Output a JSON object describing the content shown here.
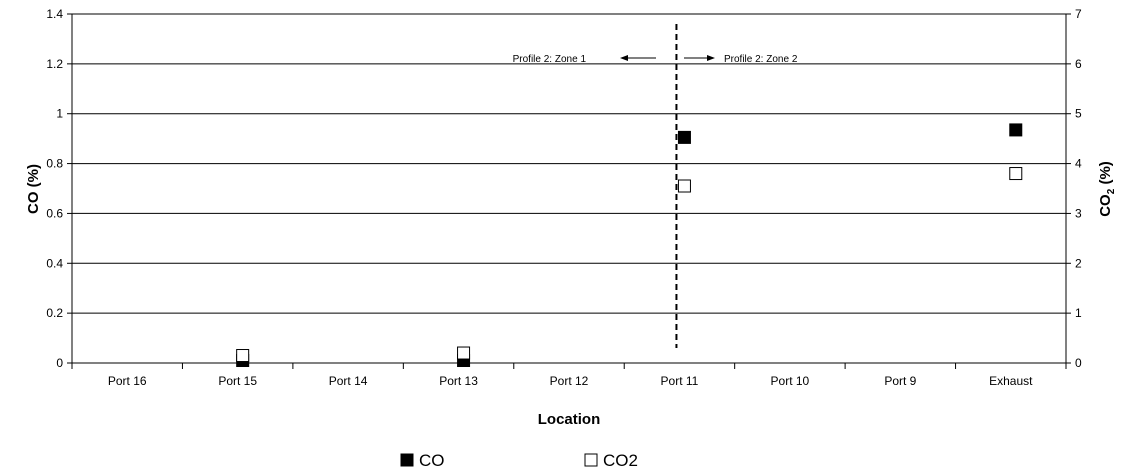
{
  "chart_data": {
    "type": "scatter",
    "categories": [
      "Port 16",
      "Port 15",
      "Port 14",
      "Port 13",
      "Port 12",
      "Port 11",
      "Port 10",
      "Port 9",
      "Exhaust"
    ],
    "xlabel": "Location",
    "ylabel_left": "CO (%)",
    "ylabel_right_main": "CO",
    "ylabel_right_sub": "2",
    "ylabel_right_tail": " (%)",
    "ylim_left": [
      0,
      1.4
    ],
    "ylim_right": [
      0,
      7
    ],
    "yticks_left": [
      "0",
      "0.2",
      "0.4",
      "0.6",
      "0.8",
      "1",
      "1.2",
      "1.4"
    ],
    "yticks_right": [
      "0",
      "1",
      "2",
      "3",
      "4",
      "5",
      "6",
      "7"
    ],
    "grid": "horizontal",
    "legend_position": "bottom",
    "series": [
      {
        "name": "CO",
        "axis": "left",
        "marker": "filled-square",
        "color": "#000000",
        "points": [
          {
            "category": "Port 15",
            "y": 0.01
          },
          {
            "category": "Port 13",
            "y": 0.01
          },
          {
            "category": "Port 11",
            "y": 0.905
          },
          {
            "category": "Exhaust",
            "y": 0.935
          }
        ]
      },
      {
        "name": "CO2",
        "axis": "right",
        "marker": "open-square",
        "color": "#000000",
        "points": [
          {
            "category": "Port 15",
            "y": 0.15
          },
          {
            "category": "Port 13",
            "y": 0.2
          },
          {
            "category": "Port 11",
            "y": 3.55
          },
          {
            "category": "Exhaust",
            "y": 3.8
          }
        ]
      }
    ],
    "divider": {
      "category": "Port 11",
      "style": "dashed"
    },
    "annotations": {
      "zone_left": "Profile 2: Zone 1",
      "zone_right": "Profile 2: Zone 2"
    },
    "legend": [
      {
        "label": "CO",
        "marker": "filled-square"
      },
      {
        "label": "CO2",
        "marker": "open-square"
      }
    ]
  }
}
